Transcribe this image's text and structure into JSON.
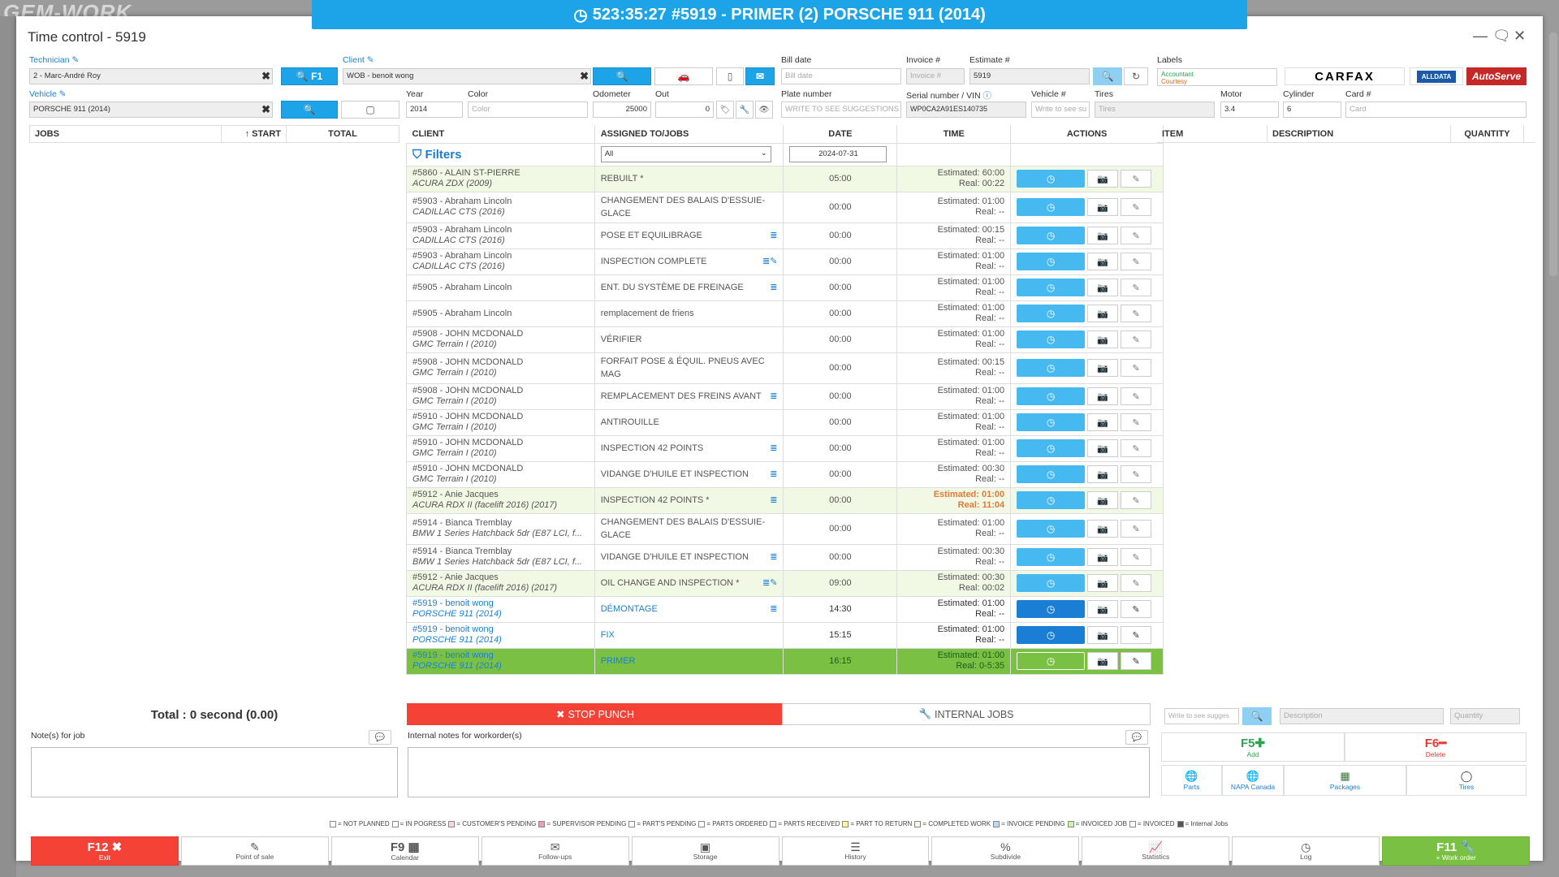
{
  "topbar": {
    "timer": "523:35:27",
    "work": "#5919 - PRIMER (2) PORSCHE 911 (2014)"
  },
  "modal": {
    "title": "Time control - 5919"
  },
  "header": {
    "technician_label": "Technician",
    "technician_value": "2 - Marc-André Roy",
    "f1_label": "F1",
    "client_label": "Client",
    "client_value": "WOB - benoit wong",
    "vehicle_label": "Vehicle",
    "vehicle_value": "PORSCHE 911 (2014)",
    "bill_date_label": "Bill date",
    "bill_date_ph": "Bill date",
    "invoice_label": "Invoice #",
    "invoice_ph": "Invoice #",
    "estimate_label": "Estimate #",
    "estimate_value": "5919",
    "labels_label": "Labels",
    "label_accountant": "Accountant",
    "label_courtesy": "Courtesy",
    "year_label": "Year",
    "year_value": "2014",
    "color_label": "Color",
    "color_ph": "Color",
    "odometer_label": "Odometer",
    "odometer_value": "25000",
    "out_label": "Out",
    "out_value": "0",
    "plate_label": "Plate number",
    "plate_ph": "WRITE TO SEE SUGGESTIONS",
    "serial_label": "Serial number / VIN",
    "serial_value": "WP0CA2A91ES140735",
    "vehicle_num_label": "Vehicle #",
    "vehicle_num_ph": "Write to see su",
    "tires_label": "Tires",
    "tires_ph": "Tires",
    "motor_label": "Motor",
    "motor_value": "3.4",
    "cylinder_label": "Cylinder",
    "cylinder_value": "6",
    "card_label": "Card #",
    "card_ph": "Card",
    "carfax": "CARFAX",
    "alldata": "ALLDATA",
    "autoserve": "AutoServe"
  },
  "left_table": {
    "col_jobs": "JOBS",
    "col_start": "START",
    "col_total": "TOTAL"
  },
  "grid": {
    "col_client": "CLIENT",
    "col_assigned": "ASSIGNED TO/JOBS",
    "col_date": "DATE",
    "col_time": "TIME",
    "col_actions": "ACTIONS",
    "filters_label": "Filters",
    "filter_select": "All",
    "filter_date": "2024-07-31",
    "rows": [
      {
        "c1": "#5860 - ALAIN ST-PIERRE",
        "c2": "ACURA ZDX (2009)",
        "job": "REBUILT *",
        "date": "05:00",
        "est": "Estimated: 60:00",
        "real": "Real: 00:22",
        "cls": "green-lt",
        "icon": ""
      },
      {
        "c1": "#5903 - Abraham Lincoln",
        "c2": "CADILLAC CTS (2016)",
        "job": "CHANGEMENT DES BALAIS D'ESSUIE-GLACE",
        "date": "00:00",
        "est": "Estimated: 01:00",
        "real": "Real: --",
        "cls": "tall",
        "icon": ""
      },
      {
        "c1": "#5903 - Abraham Lincoln",
        "c2": "CADILLAC CTS (2016)",
        "job": "POSE ET EQUILIBRAGE",
        "date": "00:00",
        "est": "Estimated: 00:15",
        "real": "Real: --",
        "cls": "",
        "icon": "≣"
      },
      {
        "c1": "#5903 - Abraham Lincoln",
        "c2": "CADILLAC CTS (2016)",
        "job": "INSPECTION COMPLETE",
        "date": "00:00",
        "est": "Estimated: 01:00",
        "real": "Real: --",
        "cls": "",
        "icon": "≣✎"
      },
      {
        "c1": "#5905 - Abraham Lincoln",
        "c2": "",
        "job": "ENT. DU SYSTÈME DE FREINAGE",
        "date": "00:00",
        "est": "Estimated: 01:00",
        "real": "Real: --",
        "cls": "",
        "icon": "≣"
      },
      {
        "c1": "#5905 - Abraham Lincoln",
        "c2": "",
        "job": "remplacement de friens",
        "date": "00:00",
        "est": "Estimated: 01:00",
        "real": "Real: --",
        "cls": "",
        "icon": ""
      },
      {
        "c1": "#5908 - JOHN MCDONALD",
        "c2": "GMC Terrain I (2010)",
        "job": "VÉRIFIER",
        "date": "00:00",
        "est": "Estimated: 01:00",
        "real": "Real: --",
        "cls": "",
        "icon": ""
      },
      {
        "c1": "#5908 - JOHN MCDONALD",
        "c2": "GMC Terrain I (2010)",
        "job": "FORFAIT POSE & ÉQUIL. PNEUS AVEC MAG",
        "date": "00:00",
        "est": "Estimated: 00:15",
        "real": "Real: --",
        "cls": "tall",
        "icon": ""
      },
      {
        "c1": "#5908 - JOHN MCDONALD",
        "c2": "GMC Terrain I (2010)",
        "job": "REMPLACEMENT DES FREINS AVANT",
        "date": "00:00",
        "est": "Estimated: 01:00",
        "real": "Real: --",
        "cls": "",
        "icon": "≣"
      },
      {
        "c1": "#5910 - JOHN MCDONALD",
        "c2": "GMC Terrain I (2010)",
        "job": "ANTIROUILLE",
        "date": "00:00",
        "est": "Estimated: 01:00",
        "real": "Real: --",
        "cls": "",
        "icon": ""
      },
      {
        "c1": "#5910 - JOHN MCDONALD",
        "c2": "GMC Terrain I (2010)",
        "job": "INSPECTION 42 POINTS",
        "date": "00:00",
        "est": "Estimated: 01:00",
        "real": "Real: --",
        "cls": "",
        "icon": "≣"
      },
      {
        "c1": "#5910 - JOHN MCDONALD",
        "c2": "GMC Terrain I (2010)",
        "job": "VIDANGE D'HUILE ET INSPECTION",
        "date": "00:00",
        "est": "Estimated: 00:30",
        "real": "Real: --",
        "cls": "",
        "icon": "≣"
      },
      {
        "c1": "#5912 - Anie Jacques",
        "c2": "ACURA RDX II (facelift 2016) (2017)",
        "job": "INSPECTION 42 POINTS *",
        "date": "00:00",
        "est": "Estimated: 01:00",
        "real": "Real: 11:04",
        "cls": "green-lt warn",
        "icon": "≣"
      },
      {
        "c1": "#5914 - Bianca Tremblay",
        "c2": "BMW 1 Series Hatchback 5dr (E87 LCI, f...",
        "job": "CHANGEMENT DES BALAIS D'ESSUIE-GLACE",
        "date": "00:00",
        "est": "Estimated: 01:00",
        "real": "Real: --",
        "cls": "tall",
        "icon": ""
      },
      {
        "c1": "#5914 - Bianca Tremblay",
        "c2": "BMW 1 Series Hatchback 5dr (E87 LCI, f...",
        "job": "VIDANGE D'HUILE ET INSPECTION",
        "date": "00:00",
        "est": "Estimated: 00:30",
        "real": "Real: --",
        "cls": "",
        "icon": "≣"
      },
      {
        "c1": "#5912 - Anie Jacques",
        "c2": "ACURA RDX II (facelift 2016) (2017)",
        "job": "OIL CHANGE AND INSPECTION *",
        "date": "09:00",
        "est": "Estimated: 00:30",
        "real": "Real: 00:02",
        "cls": "green-lt",
        "icon": "≣✎"
      },
      {
        "c1": "#5919 - benoit wong",
        "c2": "PORSCHE 911 (2014)",
        "job": "DÉMONTAGE",
        "date": "14:30",
        "est": "Estimated: 01:00",
        "real": "Real: --",
        "cls": "blue",
        "icon": "≣"
      },
      {
        "c1": "#5919 - benoit wong",
        "c2": "PORSCHE 911 (2014)",
        "job": "FIX",
        "date": "15:15",
        "est": "Estimated: 01:00",
        "real": "Real: --",
        "cls": "blue",
        "icon": ""
      },
      {
        "c1": "#5919 - benoit wong",
        "c2": "PORSCHE 911 (2014)",
        "job": "PRIMER",
        "date": "16:15",
        "est": "Estimated: 01:00",
        "real": "Real: 0-5:35",
        "cls": "active",
        "icon": ""
      }
    ]
  },
  "right_table": {
    "col_item": "ITEM",
    "col_desc": "DESCRIPTION",
    "col_qty": "QUANTITY"
  },
  "bottom": {
    "total": "Total : 0 second (0.00)",
    "stop_punch": "STOP PUNCH",
    "internal_jobs": "INTERNAL JOBS",
    "notes_job_label": "Note(s) for job",
    "notes_internal_label": "Internal notes for workorder(s)",
    "part_search_ph": "Write to see sugges",
    "desc_ph": "Description",
    "qty_ph": "Quantity",
    "f5": "F5",
    "f5_sub": "Add",
    "f6": "F6",
    "f6_sub": "Delete",
    "parts": "Parts",
    "napa": "NAPA Canada",
    "packages": "Packages",
    "tires": "Tires"
  },
  "legend": [
    {
      "label": "= NOT PLANNED",
      "color": "#ffffff"
    },
    {
      "label": "= IN POGRESS",
      "color": "#ffffff"
    },
    {
      "label": "= CUSTOMER'S PENDING",
      "color": "#f7d6e0"
    },
    {
      "label": "= SUPERVISOR PENDING",
      "color": "#e8a0b0"
    },
    {
      "label": "= PART'S PENDING",
      "color": "#ffffff"
    },
    {
      "label": "= PARTS ORDERED",
      "color": "#ffffff"
    },
    {
      "label": "= PARTS RECEIVED",
      "color": "#ffffff"
    },
    {
      "label": "= PART TO RETURN",
      "color": "#fff7a0"
    },
    {
      "label": "= COMPLETED WORK",
      "color": "#f1f8e4"
    },
    {
      "label": "= INVOICE PENDING",
      "color": "#bcd9f5"
    },
    {
      "label": "= INVOICED JOB",
      "color": "#d4f0b0"
    },
    {
      "label": "= INVOICED",
      "color": "#ffffff"
    },
    {
      "label": "= Internal Jobs",
      "color": "#555555"
    }
  ],
  "footer": [
    {
      "key": "F12",
      "sub": "Exit",
      "icon": "✖",
      "style": "red"
    },
    {
      "key": "",
      "sub": "Point of sale",
      "icon": "✎",
      "style": ""
    },
    {
      "key": "F9",
      "sub": "Calendar",
      "icon": "▦",
      "style": ""
    },
    {
      "key": "",
      "sub": "Follow-ups",
      "icon": "✉",
      "style": ""
    },
    {
      "key": "",
      "sub": "Storage",
      "icon": "▣",
      "style": ""
    },
    {
      "key": "",
      "sub": "History",
      "icon": "☰",
      "style": ""
    },
    {
      "key": "",
      "sub": "Subdivide",
      "icon": "%",
      "style": ""
    },
    {
      "key": "",
      "sub": "Statistics",
      "icon": "📈",
      "style": ""
    },
    {
      "key": "",
      "sub": "Log",
      "icon": "◷",
      "style": ""
    },
    {
      "key": "F11",
      "sub": "+ Work order",
      "icon": "🔧",
      "style": "green"
    }
  ],
  "colors": {
    "accent": "#1da4e8",
    "stop": "#f44336",
    "active": "#7ac143"
  }
}
